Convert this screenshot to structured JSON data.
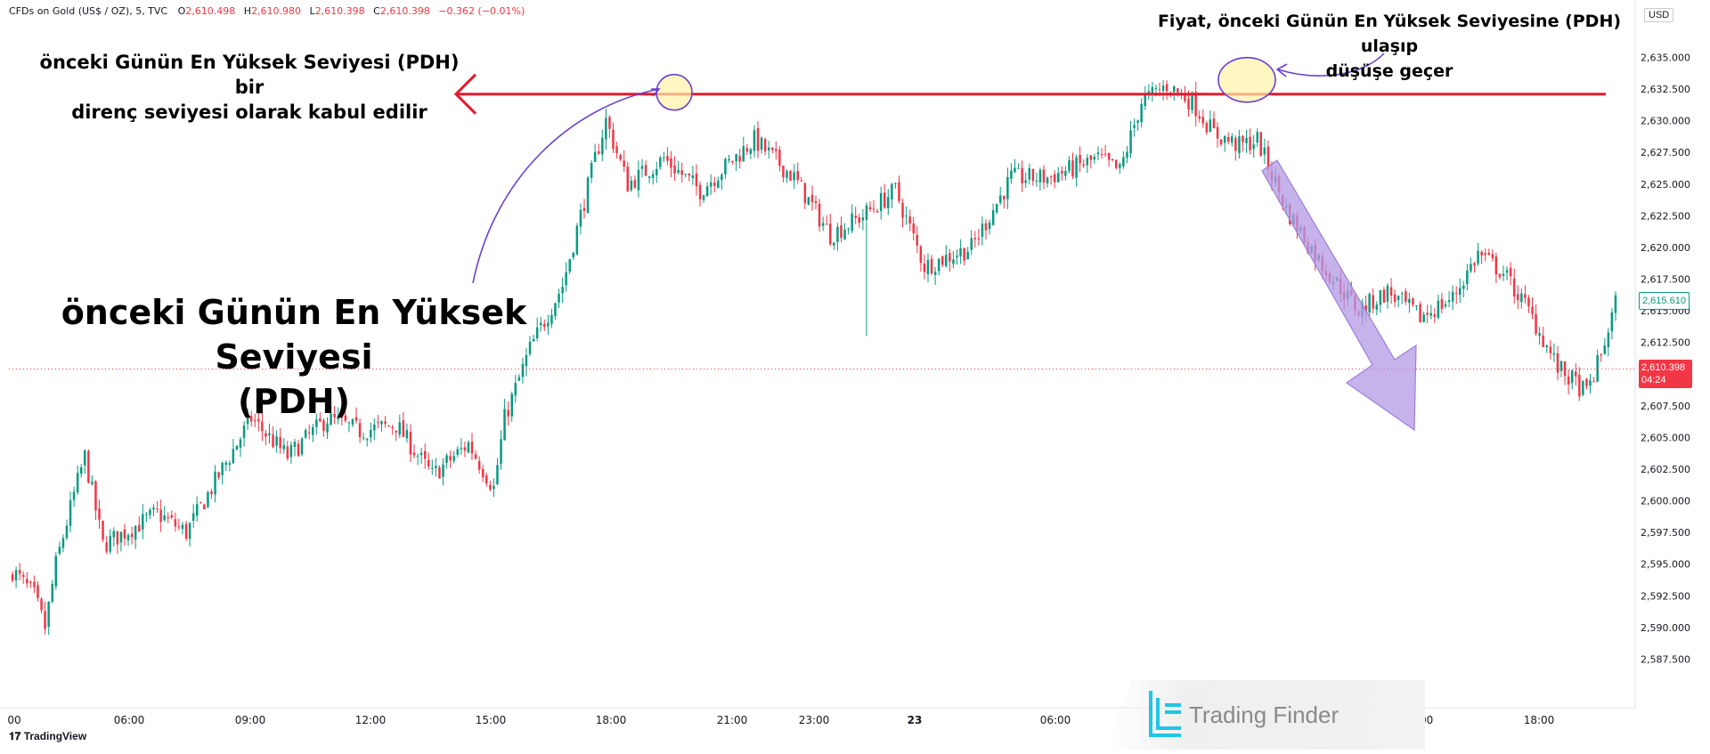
{
  "header": {
    "symbol": "CFDs on Gold (US$ / OZ), 5, TVC",
    "open_label": "O",
    "open": "2,610.498",
    "high_label": "H",
    "high": "2,610.980",
    "low_label": "L",
    "low": "2,610.398",
    "close_label": "C",
    "close": "2,610.398",
    "change": "−0.362 (−0.01%)"
  },
  "currency": "USD",
  "annotations": {
    "left_line1": "önceki Günün En Yüksek Seviyesi (PDH) bir",
    "left_line2": "direnç seviyesi olarak kabul edilir",
    "big_line1": "önceki Günün En Yüksek Seviyesi",
    "big_line2": "(PDH)",
    "right_line1": "Fiyat, önceki Günün En Yüksek Seviyesine (PDH) ulaşıp",
    "right_line2": "düşüşe geçer"
  },
  "price_tags": {
    "last": "2,615.610",
    "current": "2,610.398",
    "countdown": "04:24"
  },
  "branding": {
    "tradingview": "TradingView",
    "watermark": "Trading Finder"
  },
  "colors": {
    "up": "#089981",
    "down": "#f23645",
    "pdh_line": "#e8192c",
    "purple": "#6a3fd0",
    "arrow_fill": "#b49ae6",
    "highlight": "#fff2a8"
  },
  "chart_data": {
    "type": "candlestick",
    "timeframe": "5",
    "ylim": [
      2585.0,
      2637.0
    ],
    "y_ticks": [
      2587.5,
      2590.0,
      2592.5,
      2595.0,
      2597.5,
      2600.0,
      2602.5,
      2605.0,
      2607.5,
      2610.0,
      2612.5,
      2615.0,
      2617.5,
      2620.0,
      2622.5,
      2625.0,
      2627.5,
      2630.0,
      2632.5,
      2635.0
    ],
    "y_tick_labels": [
      "2,587.500",
      "2,590.000",
      "2,592.500",
      "2,595.000",
      "2,597.500",
      "2,600.000",
      "2,602.500",
      "2,605.000",
      "2,607.500",
      "2,610.000",
      "2,612.500",
      "2,615.000",
      "2,617.500",
      "2,620.000",
      "2,622.500",
      "2,625.000",
      "2,627.500",
      "2,630.000",
      "2,632.500",
      "2,635.000"
    ],
    "x_tick_labels": [
      "00",
      "06:00",
      "09:00",
      "12:00",
      "15:00",
      "18:00",
      "21:00",
      "23:00",
      "23",
      "06:00",
      "15:00",
      "18:00"
    ],
    "pdh_level": 2632.1,
    "current_price": 2610.398,
    "anchors": [
      [
        0,
        2594.5
      ],
      [
        6,
        2592.5
      ],
      [
        9,
        2590.0
      ],
      [
        12,
        2595.0
      ],
      [
        17,
        2600.5
      ],
      [
        20,
        2603.5
      ],
      [
        25,
        2596.5
      ],
      [
        34,
        2598.0
      ],
      [
        40,
        2599.0
      ],
      [
        48,
        2597.5
      ],
      [
        55,
        2601.0
      ],
      [
        66,
        2606.5
      ],
      [
        76,
        2603.5
      ],
      [
        87,
        2606.5
      ],
      [
        96,
        2605.5
      ],
      [
        106,
        2606.0
      ],
      [
        116,
        2602.0
      ],
      [
        126,
        2604.5
      ],
      [
        133,
        2601.0
      ],
      [
        136,
        2606.5
      ],
      [
        143,
        2612.0
      ],
      [
        152,
        2617.0
      ],
      [
        161,
        2627.0
      ],
      [
        164,
        2630.0
      ],
      [
        170,
        2625.0
      ],
      [
        180,
        2627.0
      ],
      [
        190,
        2624.5
      ],
      [
        205,
        2628.5
      ],
      [
        216,
        2625.5
      ],
      [
        226,
        2621.0
      ],
      [
        235,
        2622.5
      ],
      [
        244,
        2624.5
      ],
      [
        252,
        2618.5
      ],
      [
        265,
        2620.0
      ],
      [
        276,
        2625.5
      ],
      [
        286,
        2625.5
      ],
      [
        300,
        2627.0
      ],
      [
        306,
        2626.0
      ],
      [
        312,
        2631.5
      ],
      [
        319,
        2632.8
      ],
      [
        326,
        2631.5
      ],
      [
        332,
        2629.0
      ],
      [
        339,
        2628.0
      ],
      [
        344,
        2628.5
      ],
      [
        352,
        2623.0
      ],
      [
        361,
        2619.0
      ],
      [
        372,
        2615.0
      ],
      [
        380,
        2616.5
      ],
      [
        389,
        2614.5
      ],
      [
        398,
        2616.0
      ],
      [
        405,
        2619.5
      ],
      [
        412,
        2618.0
      ],
      [
        419,
        2615.0
      ],
      [
        427,
        2610.5
      ],
      [
        435,
        2608.5
      ],
      [
        439,
        2611.5
      ],
      [
        443,
        2615.6
      ]
    ]
  }
}
